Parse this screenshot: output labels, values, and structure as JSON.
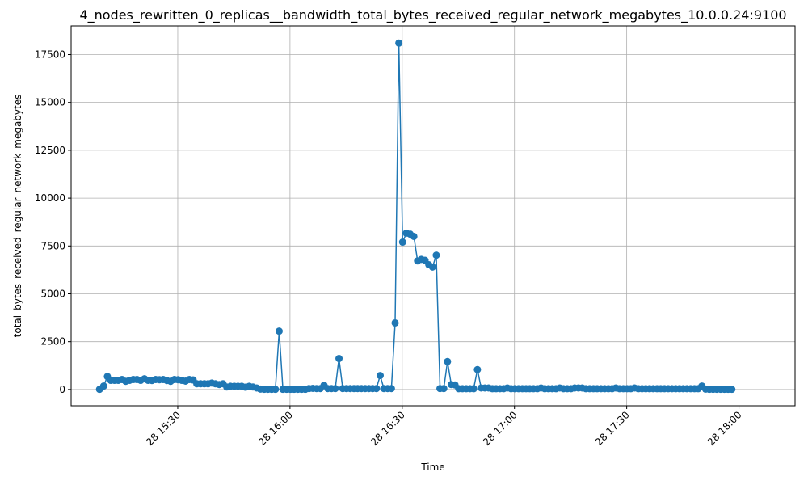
{
  "chart_data": {
    "type": "line",
    "title": "4_nodes_rewritten_0_replicas__bandwidth_total_bytes_received_regular_network_megabytes_10.0.0.24:9100",
    "xlabel": "Time",
    "ylabel": "total_bytes_received_regular_network_megabytes",
    "x_axis_format": "minutes from 28 15:00",
    "xlim": [
      1.5,
      195
    ],
    "ylim": [
      -850,
      19000
    ],
    "grid": true,
    "colors": {
      "series": "#1f77b4",
      "grid": "#b0b0b0",
      "axis": "#000000"
    },
    "x_ticks": [
      {
        "value": 30,
        "label": "28 15:30"
      },
      {
        "value": 60,
        "label": "28 16:00"
      },
      {
        "value": 90,
        "label": "28 16:30"
      },
      {
        "value": 120,
        "label": "28 17:00"
      },
      {
        "value": 150,
        "label": "28 17:30"
      },
      {
        "value": 180,
        "label": "28 18:00"
      }
    ],
    "y_ticks": [
      {
        "value": 0,
        "label": "0"
      },
      {
        "value": 2500,
        "label": "2500"
      },
      {
        "value": 5000,
        "label": "5000"
      },
      {
        "value": 7500,
        "label": "7500"
      },
      {
        "value": 10000,
        "label": "10000"
      },
      {
        "value": 12500,
        "label": "12500"
      },
      {
        "value": 15000,
        "label": "15000"
      },
      {
        "value": 17500,
        "label": "17500"
      }
    ],
    "series": [
      {
        "points": [
          [
            9.1,
            10
          ],
          [
            10.2,
            180
          ],
          [
            11.2,
            680
          ],
          [
            12.1,
            480
          ],
          [
            13.1,
            480
          ],
          [
            14.1,
            480
          ],
          [
            15.1,
            520
          ],
          [
            16.1,
            430
          ],
          [
            17.1,
            480
          ],
          [
            18.1,
            520
          ],
          [
            19.1,
            520
          ],
          [
            20.1,
            480
          ],
          [
            21.1,
            560
          ],
          [
            22.1,
            480
          ],
          [
            23.1,
            470
          ],
          [
            24.1,
            520
          ],
          [
            25.1,
            510
          ],
          [
            26.1,
            520
          ],
          [
            27.1,
            470
          ],
          [
            28.1,
            430
          ],
          [
            29.1,
            520
          ],
          [
            30.1,
            510
          ],
          [
            31.1,
            480
          ],
          [
            32.1,
            440
          ],
          [
            33.1,
            520
          ],
          [
            34.1,
            500
          ],
          [
            35.1,
            300
          ],
          [
            36.1,
            300
          ],
          [
            37.1,
            300
          ],
          [
            38.1,
            300
          ],
          [
            39.1,
            340
          ],
          [
            40.1,
            300
          ],
          [
            41.1,
            260
          ],
          [
            42.1,
            300
          ],
          [
            43.1,
            130
          ],
          [
            44.1,
            170
          ],
          [
            45.1,
            170
          ],
          [
            46.1,
            170
          ],
          [
            47.1,
            170
          ],
          [
            48.1,
            120
          ],
          [
            49.1,
            170
          ],
          [
            50.1,
            130
          ],
          [
            51.1,
            80
          ],
          [
            52.1,
            20
          ],
          [
            53.1,
            10
          ],
          [
            54.1,
            10
          ],
          [
            55.1,
            10
          ],
          [
            56.1,
            10
          ],
          [
            57.1,
            3050
          ],
          [
            58.1,
            10
          ],
          [
            59.1,
            10
          ],
          [
            60.1,
            10
          ],
          [
            61.1,
            10
          ],
          [
            62.1,
            10
          ],
          [
            63.1,
            10
          ],
          [
            64.1,
            10
          ],
          [
            65.1,
            50
          ],
          [
            66.1,
            60
          ],
          [
            67.1,
            50
          ],
          [
            68.1,
            50
          ],
          [
            69.1,
            220
          ],
          [
            70.1,
            50
          ],
          [
            71.1,
            50
          ],
          [
            72.1,
            50
          ],
          [
            73.1,
            1620
          ],
          [
            74.1,
            50
          ],
          [
            75.1,
            50
          ],
          [
            76.1,
            50
          ],
          [
            77.1,
            50
          ],
          [
            78.1,
            50
          ],
          [
            79.1,
            50
          ],
          [
            80.1,
            50
          ],
          [
            81.1,
            50
          ],
          [
            82.1,
            50
          ],
          [
            83.1,
            50
          ],
          [
            84.1,
            730
          ],
          [
            85.1,
            50
          ],
          [
            86.1,
            50
          ],
          [
            87.1,
            50
          ],
          [
            88.1,
            3480
          ],
          [
            89.1,
            18100
          ],
          [
            90.1,
            7700
          ],
          [
            91.1,
            8170
          ],
          [
            92.1,
            8120
          ],
          [
            93.1,
            8000
          ],
          [
            94.1,
            6720
          ],
          [
            95.1,
            6800
          ],
          [
            96.1,
            6750
          ],
          [
            97.1,
            6520
          ],
          [
            98.1,
            6400
          ],
          [
            99.1,
            7020
          ],
          [
            100.1,
            50
          ],
          [
            101.1,
            50
          ],
          [
            102.1,
            1460
          ],
          [
            103.1,
            260
          ],
          [
            104.1,
            240
          ],
          [
            105.1,
            40
          ],
          [
            106.1,
            40
          ],
          [
            107.1,
            40
          ],
          [
            108.1,
            40
          ],
          [
            109.1,
            40
          ],
          [
            110.1,
            1040
          ],
          [
            111.1,
            80
          ],
          [
            112.1,
            80
          ],
          [
            113.1,
            80
          ],
          [
            114.1,
            40
          ],
          [
            115.1,
            40
          ],
          [
            116.1,
            40
          ],
          [
            117.1,
            40
          ],
          [
            118.1,
            80
          ],
          [
            119.1,
            40
          ],
          [
            120.1,
            40
          ],
          [
            121.1,
            40
          ],
          [
            122.1,
            40
          ],
          [
            123.1,
            40
          ],
          [
            124.1,
            40
          ],
          [
            125.1,
            40
          ],
          [
            126.1,
            40
          ],
          [
            127.1,
            80
          ],
          [
            128.1,
            40
          ],
          [
            129.1,
            40
          ],
          [
            130.1,
            40
          ],
          [
            131.1,
            40
          ],
          [
            132.1,
            80
          ],
          [
            133.1,
            40
          ],
          [
            134.1,
            40
          ],
          [
            135.1,
            40
          ],
          [
            136.1,
            80
          ],
          [
            137.1,
            80
          ],
          [
            138.1,
            80
          ],
          [
            139.1,
            40
          ],
          [
            140.1,
            40
          ],
          [
            141.1,
            40
          ],
          [
            142.1,
            40
          ],
          [
            143.1,
            40
          ],
          [
            144.1,
            40
          ],
          [
            145.1,
            40
          ],
          [
            146.1,
            40
          ],
          [
            147.1,
            80
          ],
          [
            148.1,
            40
          ],
          [
            149.1,
            40
          ],
          [
            150.1,
            40
          ],
          [
            151.1,
            40
          ],
          [
            152.1,
            80
          ],
          [
            153.1,
            40
          ],
          [
            154.1,
            40
          ],
          [
            155.1,
            40
          ],
          [
            156.1,
            40
          ],
          [
            157.1,
            40
          ],
          [
            158.1,
            40
          ],
          [
            159.1,
            40
          ],
          [
            160.1,
            40
          ],
          [
            161.1,
            40
          ],
          [
            162.1,
            40
          ],
          [
            163.1,
            40
          ],
          [
            164.1,
            40
          ],
          [
            165.1,
            40
          ],
          [
            166.1,
            40
          ],
          [
            167.1,
            40
          ],
          [
            168.1,
            40
          ],
          [
            169.1,
            40
          ],
          [
            170.1,
            180
          ],
          [
            171.1,
            20
          ],
          [
            172.1,
            10
          ],
          [
            173.1,
            10
          ],
          [
            174.1,
            10
          ],
          [
            175.1,
            10
          ],
          [
            176.1,
            10
          ],
          [
            177.1,
            10
          ],
          [
            178.1,
            10
          ]
        ]
      }
    ]
  }
}
